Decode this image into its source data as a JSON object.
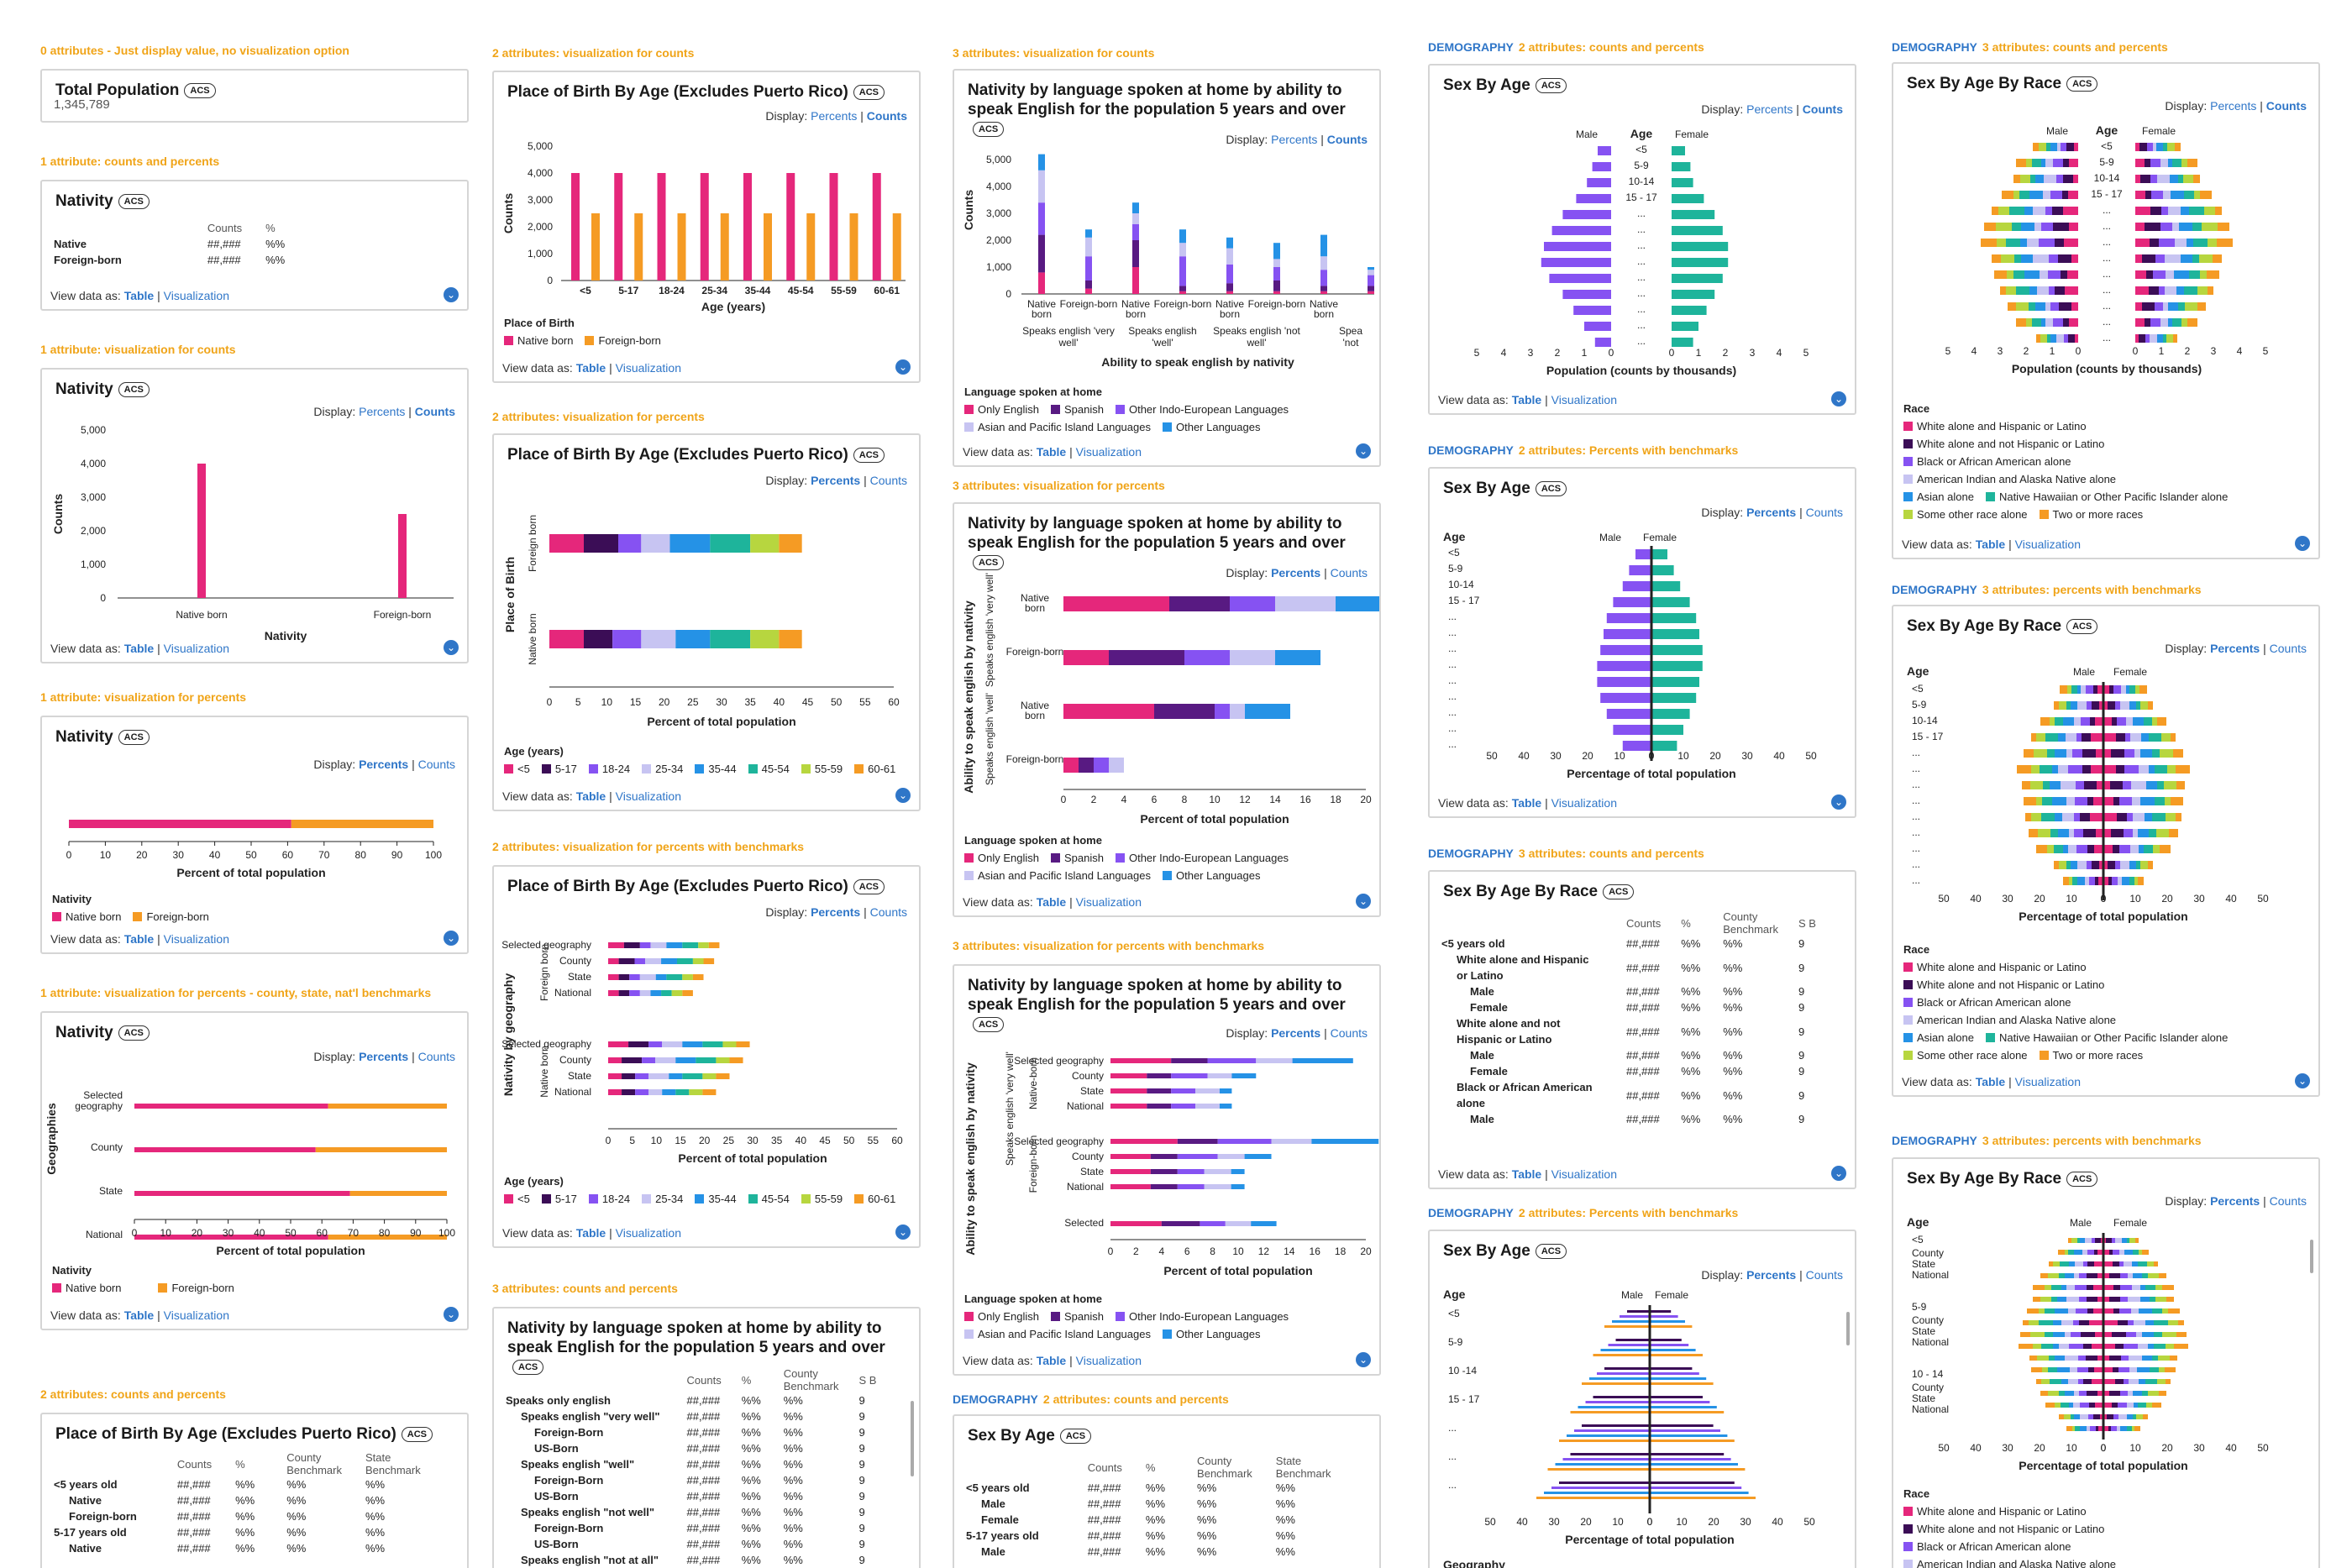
{
  "colors": {
    "pink": "#e5277b",
    "orange": "#f59b24",
    "purple": "#8652f2",
    "teal": "#1eb49b",
    "navy": "#3b0d56",
    "lavender": "#c7c4f2",
    "blue": "#2592e6",
    "lime": "#b7d63f",
    "darkpurple": "#581a82"
  },
  "common": {
    "display": "Display:",
    "percents": "Percents",
    "counts": "Counts",
    "view_data": "View data as:",
    "table": "Table",
    "visualization": "Visualization",
    "acs": "ACS",
    "sep": "|"
  },
  "col1": {
    "s1": "0 attributes - Just display value, no visualization option",
    "c1_title": "Total Population",
    "c1_value": "1,345,789",
    "s2": "1 attribute: counts and percents",
    "c2_title": "Nativity",
    "c2_h1": "Counts",
    "c2_h2": "%",
    "c2_r1": "Native",
    "c2_r2": "Foreign-born",
    "c2_v": "##,###",
    "c2_p": "%%",
    "s3": "1 attribute: visualization for counts",
    "c3_title": "Nativity",
    "c3_ylabel": "Counts",
    "c3_xlabel": "Nativity",
    "c3_ticks": [
      "5,000",
      "4,000",
      "3,000",
      "2,000",
      "1,000",
      "0"
    ],
    "c3_cats": [
      "Native born",
      "Foreign-born"
    ],
    "s4": "1 attribute: visualization for percents",
    "c4_title": "Nativity",
    "c4_xlabel": "Percent of total population",
    "c4_ticks": [
      "0",
      "10",
      "20",
      "30",
      "40",
      "50",
      "60",
      "70",
      "80",
      "90",
      "100"
    ],
    "c4_leg_title": "Nativity",
    "c4_leg": [
      "Native born",
      "Foreign-born"
    ],
    "s5": "1 attribute: visualization for percents - county, state, nat'l benchmarks",
    "c5_title": "Nativity",
    "c5_ylabel": "Geographies",
    "c5_cats": [
      "Selected geography",
      "County",
      "State",
      "National"
    ],
    "c5_xlabel": "Percent of total population",
    "c5_leg_title": "Nativity",
    "c5_leg": [
      "Native born",
      "Foreign-born"
    ],
    "s6": "2 attributes: counts and percents",
    "c6_title": "Place of Birth By Age (Excludes Puerto Rico)",
    "c6_h": [
      "Counts",
      "%",
      "County Benchmark",
      "State Benchmark"
    ],
    "c6_rows": [
      "<5 years old",
      "Native",
      "Foreign-born",
      "5-17 years old",
      "Native"
    ]
  },
  "col2": {
    "s1": "2 attributes: visualization for counts",
    "c1_title": "Place of Birth By Age (Excludes Puerto Rico)",
    "c1_ylabel": "Counts",
    "c1_xlabel": "Age (years)",
    "c1_ticks": [
      "5,000",
      "4,000",
      "3,000",
      "2,000",
      "1,000",
      "0"
    ],
    "c1_cats": [
      "<5",
      "5-17",
      "18-24",
      "25-34",
      "35-44",
      "45-54",
      "55-59",
      "60-61"
    ],
    "c1_leg_title": "Place of Birth",
    "c1_leg": [
      "Native born",
      "Foreign-born"
    ],
    "s2": "2 attributes: visualization for percents",
    "c2_title": "Place of Birth By Age (Excludes Puerto Rico)",
    "c2_ylabel": "Place of Birth",
    "c2_cats": [
      "Foreign born",
      "Native born"
    ],
    "c2_xlabel": "Percent of total population",
    "c2_ticks": [
      "0",
      "5",
      "10",
      "15",
      "20",
      "25",
      "30",
      "35",
      "40",
      "45",
      "50",
      "55",
      "60"
    ],
    "c2_leg_title": "Age (years)",
    "c2_leg": [
      "<5",
      "5-17",
      "18-24",
      "25-34",
      "35-44",
      "45-54",
      "55-59",
      "60-61"
    ],
    "s3": "2 attributes: visualization for percents with benchmarks",
    "c3_title": "Place of Birth By Age (Excludes Puerto Rico)",
    "c3_ylabel": "Nativity by geography",
    "c3_groups": [
      "Foreign born",
      "Native born"
    ],
    "c3_geo": [
      "Selected geography",
      "County",
      "State",
      "National"
    ],
    "c3_xlabel": "Percent of total population",
    "c3_leg_title": "Age (years)",
    "s4": "3 attributes: counts and percents",
    "c4_title": "Nativity by language spoken at home by ability to speak English for the population 5 years and over",
    "c4_h": [
      "Counts",
      "%",
      "County Benchmark",
      "S B"
    ],
    "c4_rows": [
      "Speaks only english",
      "Speaks english \"very well\"",
      "Foreign-Born",
      "US-Born",
      "Speaks english \"well\"",
      "Foreign-Born",
      "US-Born",
      "Speaks english \"not well\"",
      "Foreign-Born",
      "US-Born",
      "Speaks english \"not at all\""
    ]
  },
  "col3": {
    "s1": "3 attributes: visualization for counts",
    "c1_title": "Nativity by language spoken at home by ability to speak English for the population 5 years and over",
    "c1_ylabel": "Counts",
    "c1_xlabel": "Ability to speak english by nativity",
    "c1_ticks": [
      "5,000",
      "4,000",
      "3,000",
      "2,000",
      "1,000",
      "0"
    ],
    "c1_sub": [
      "Native born",
      "Foreign-born",
      "Native born",
      "Foreign-born",
      "Native born",
      "Foreign-born",
      "Native born"
    ],
    "c1_groups": [
      "Speaks english 'very well'",
      "Speaks english 'well'",
      "Speaks english 'not well'",
      "Spea 'not"
    ],
    "c1_leg_title": "Language spoken at home",
    "c1_leg": [
      "Only English",
      "Spanish",
      "Other Indo-European Languages",
      "Asian and Pacific Island Languages",
      "Other Languages"
    ],
    "s2": "3 attributes: visualization for percents",
    "c2_title": "Nativity by language spoken at home by ability to speak English for the population 5 years and over",
    "c2_ylabel": "Ability to speak english by nativity",
    "c2_g": [
      "Speaks english 'very well'",
      "Speaks english 'well'"
    ],
    "c2_cats": [
      "Native born",
      "Foreign-born",
      "Native born",
      "Foreign-born"
    ],
    "c2_xlabel": "Percent of total population",
    "c2_ticks": [
      "0",
      "2",
      "4",
      "6",
      "8",
      "10",
      "12",
      "14",
      "16",
      "18",
      "20"
    ],
    "s3": "3 attributes: visualization for percents with benchmarks",
    "c3_title": "Nativity by language spoken at home by ability to speak English for the population 5 years and over",
    "c3_ylabel": "Ability to speak english by nativity",
    "c3_sub": "Speaks english 'very well'",
    "c3_groups": [
      "Native-born",
      "Foreign-born"
    ],
    "c3_geo": [
      "Selected geography",
      "County",
      "State",
      "National"
    ],
    "c3_last": "Selected",
    "s4": "2 attributes: counts and percents",
    "s4_demo": "DEMOGRAPHY",
    "c4_title": "Sex By Age",
    "c4_h": [
      "Counts",
      "%",
      "County Benchmark",
      "State Benchmark"
    ],
    "c4_rows": [
      "<5 years old",
      "Male",
      "Female",
      "5-17 years old",
      "Male"
    ]
  },
  "col4": {
    "demo": "DEMOGRAPHY",
    "s1": "2 attributes: counts and percents",
    "c1_title": "Sex By Age",
    "c1_male": "Male",
    "c1_female": "Female",
    "c1_age": "Age",
    "c1_ages": [
      "<5",
      "5-9",
      "10-14",
      "15 - 17",
      "...",
      "...",
      "...",
      "...",
      "...",
      "...",
      "...",
      "...",
      "..."
    ],
    "c1_ticks": [
      "5",
      "4",
      "3",
      "2",
      "1",
      "0",
      "0",
      "1",
      "2",
      "3",
      "4",
      "5"
    ],
    "c1_xlabel": "Population (counts by thousands)",
    "s2": "2 attributes: Percents with benchmarks",
    "c2_title": "Sex By Age",
    "c2_xlabel": "Percentage of total population",
    "c2_ticks": [
      "50",
      "40",
      "30",
      "20",
      "10",
      "0",
      "0",
      "10",
      "20",
      "30",
      "40",
      "50"
    ],
    "s3": "3 attributes: counts and percents",
    "c3_title": "Sex By Age By Race",
    "c3_h": [
      "Counts",
      "%",
      "County Benchmark",
      "S B"
    ],
    "c3_rows": [
      "<5 years old",
      "White alone and Hispanic or Latino",
      "Male",
      "Female",
      "White alone and not Hispanic or Latino",
      "Male",
      "Female",
      "Black or African American alone",
      "Male"
    ],
    "s4": "2 attributes: Percents with benchmarks",
    "c4_title": "Sex By Age",
    "c4_ages": [
      "<5",
      "5-9",
      "10 -14",
      "15 - 17",
      "...",
      "...",
      "..."
    ],
    "c4_xlabel": "Percentage of total population",
    "c4_geo": "Geography"
  },
  "col5": {
    "demo": "DEMOGRAPHY",
    "s1": "3 attributes: counts and percents",
    "c1_title": "Sex By Age By Race",
    "c1_xlabel": "Population (counts by thousands)",
    "c1_leg_title": "Race",
    "c1_leg": [
      "White alone and Hispanic or Latino",
      "White alone and not Hispanic or Latino",
      "Black or African American alone",
      "American Indian and Alaska Native alone",
      "Asian alone",
      "Native Hawaiian or Other Pacific Islander alone",
      "Some other race alone",
      "Two or more races"
    ],
    "s2": "3 attributes: percents with benchmarks",
    "c2_title": "Sex By Age By Race",
    "c2_xlabel": "Percentage of total population",
    "s3": "3 attributes: percents with benchmarks",
    "c3_title": "Sex By Age By Race",
    "c3_groups": [
      "<5",
      "5-9",
      "10 - 14"
    ],
    "c3_geo": [
      "County",
      "State",
      "National"
    ],
    "c3_xlabel": "Percentage of total population"
  }
}
